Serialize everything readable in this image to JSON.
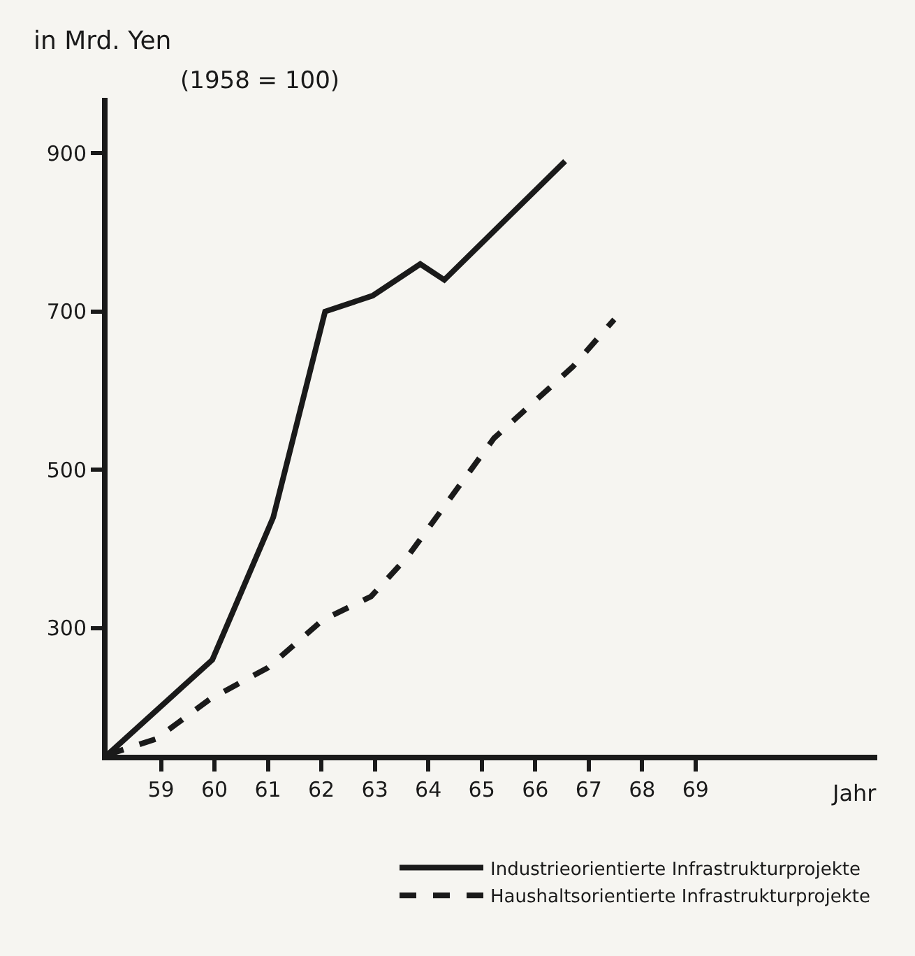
{
  "chart_data": {
    "type": "line",
    "ylabel": "in Mrd. Yen",
    "subtitle": "(1958 = 100)",
    "xlabel": "Jahr",
    "series": [
      {
        "name": "Industrieorientierte Infrastrukturprojekte",
        "color": "#1a1a1a",
        "line_style": "solid",
        "x": [
          58,
          59.96,
          61.1,
          62.07,
          62.96,
          63.85,
          64.3,
          66.56
        ],
        "values": [
          140,
          260,
          440,
          700,
          720,
          760,
          740,
          890
        ]
      },
      {
        "name": "Haushaltsorientierte Infrastrukturprojekte",
        "color": "#1a1a1a",
        "line_style": "dashed",
        "x": [
          58,
          58.91,
          59.91,
          61.0,
          62.02,
          62.93,
          63.61,
          65.23,
          66.7,
          67.48
        ],
        "values": [
          140,
          160,
          210,
          250,
          310,
          340,
          390,
          540,
          630,
          690
        ]
      }
    ],
    "xlim": [
      58,
      72.4
    ],
    "xticks": [
      59,
      60,
      61,
      62,
      63,
      64,
      65,
      66,
      67,
      68,
      69
    ],
    "ylim": [
      140,
      970
    ],
    "yticks": [
      300,
      500,
      700,
      900
    ],
    "grid": false,
    "legend": "bottom right",
    "marker": "none"
  }
}
